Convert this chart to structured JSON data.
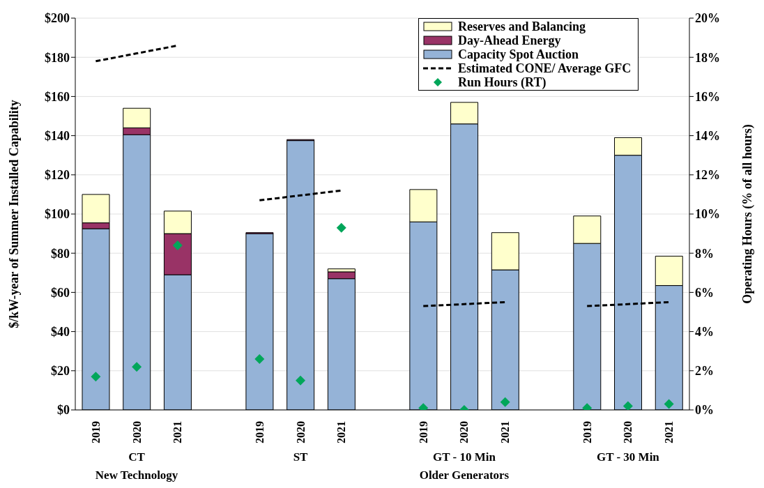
{
  "chart_data": {
    "type": "bar",
    "stacked": true,
    "categories": [
      "2019",
      "2020",
      "2021",
      null,
      "2019",
      "2020",
      "2021",
      null,
      "2019",
      "2020",
      "2021",
      null,
      "2019",
      "2020",
      "2021"
    ],
    "series": [
      {
        "name": "Capacity Spot Auction",
        "color": "#95b3d7",
        "values": [
          92.5,
          140.5,
          69,
          null,
          90,
          137.5,
          67,
          null,
          96,
          146,
          71.5,
          null,
          85,
          130,
          63.5
        ]
      },
      {
        "name": "Day-Ahead Energy",
        "color": "#993366",
        "values": [
          3,
          3.5,
          21,
          null,
          0.5,
          0.5,
          3.5,
          null,
          0,
          0,
          0,
          null,
          0,
          0,
          0
        ]
      },
      {
        "name": "Reserves and Balancing",
        "color": "#ffffcc",
        "values": [
          14.5,
          10,
          11.5,
          null,
          0,
          0,
          1.5,
          null,
          16.5,
          11,
          19,
          null,
          14,
          9,
          15
        ]
      },
      {
        "name": "Estimated CONE/ Average GFC",
        "type": "line",
        "color": "#000000",
        "line_style": "dashed",
        "marker": "none",
        "values": [
          178,
          182,
          186,
          null,
          107,
          109.5,
          112,
          null,
          53,
          54,
          55,
          null,
          53,
          54,
          55
        ]
      },
      {
        "name": "Run Hours (RT)",
        "type": "scatter",
        "axis": "y2",
        "color": "#00a65a",
        "marker": "diamond",
        "values": [
          1.7,
          2.2,
          8.4,
          null,
          2.6,
          1.5,
          9.3,
          null,
          0.1,
          0,
          0.4,
          null,
          0.1,
          0.2,
          0.3
        ]
      }
    ],
    "ylabel": "$/kW-year of Summer Installed Capability",
    "y2label": "Operating Hours (% of all hours)",
    "ylim": [
      0,
      200
    ],
    "yticks": [
      {
        "value": 0,
        "label": "$0"
      },
      {
        "value": 20,
        "label": "$20"
      },
      {
        "value": 40,
        "label": "$40"
      },
      {
        "value": 60,
        "label": "$60"
      },
      {
        "value": 80,
        "label": "$80"
      },
      {
        "value": 100,
        "label": "$100"
      },
      {
        "value": 120,
        "label": "$120"
      },
      {
        "value": 140,
        "label": "$140"
      },
      {
        "value": 160,
        "label": "$160"
      },
      {
        "value": 180,
        "label": "$180"
      },
      {
        "value": 200,
        "label": "$200"
      }
    ],
    "y2lim": [
      0,
      20
    ],
    "y2ticks": [
      {
        "value": 0,
        "label": "0%"
      },
      {
        "value": 2,
        "label": "2%"
      },
      {
        "value": 4,
        "label": "4%"
      },
      {
        "value": 6,
        "label": "6%"
      },
      {
        "value": 8,
        "label": "8%"
      },
      {
        "value": 10,
        "label": "10%"
      },
      {
        "value": 12,
        "label": "12%"
      },
      {
        "value": 14,
        "label": "14%"
      },
      {
        "value": 16,
        "label": "16%"
      },
      {
        "value": 18,
        "label": "18%"
      },
      {
        "value": 20,
        "label": "20%"
      }
    ],
    "annotations": [
      "CT",
      "ST",
      "GT - 10 Min",
      "GT - 30 Min",
      "New Technology",
      "Older Generators"
    ],
    "grid": "y",
    "legend": "top right"
  }
}
